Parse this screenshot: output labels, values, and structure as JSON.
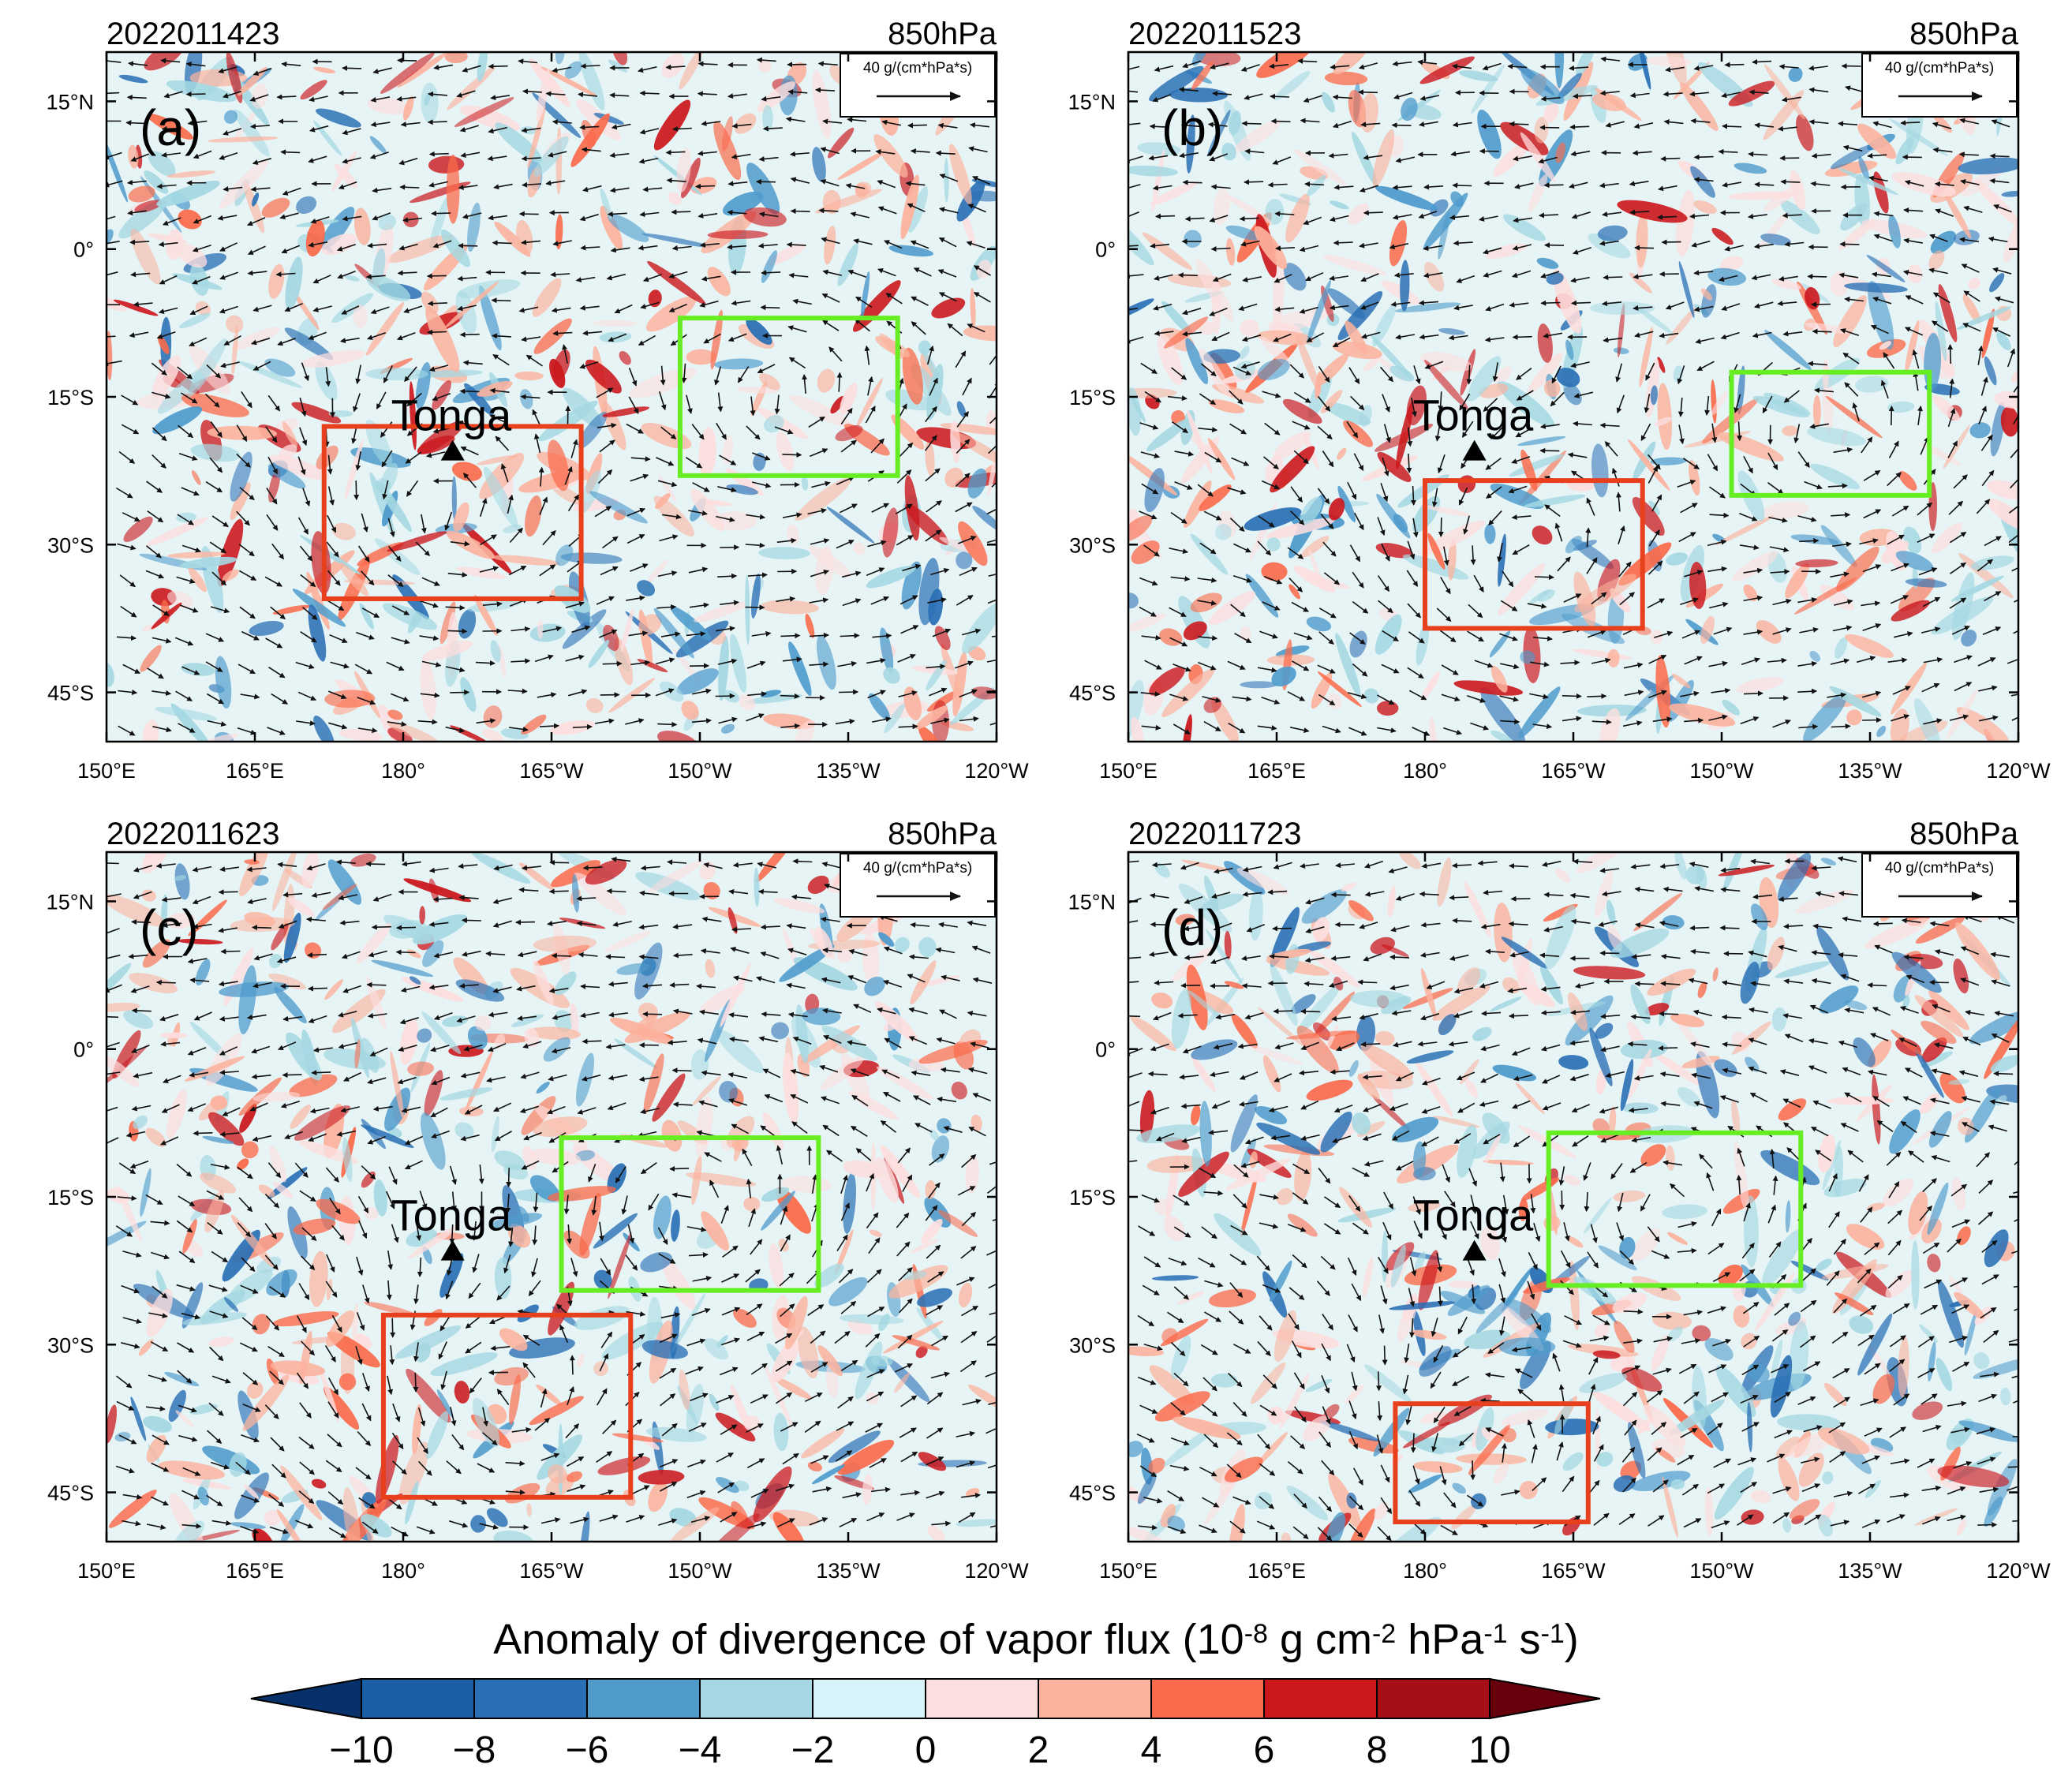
{
  "panels": [
    {
      "id": "a",
      "label": "(a)",
      "date": "2022011423",
      "level": "850hPa",
      "ref_vector_label": "40 g/(cm*hPa*s)",
      "place_label": "Tonga",
      "tonga_location": {
        "lon": 185.0,
        "lat": -20.5
      },
      "red_box": {
        "lon_min": 172.0,
        "lon_max": 198.0,
        "lat_min": -35.5,
        "lat_max": -18.0
      },
      "green_box": {
        "lon_min": 208.0,
        "lon_max": 230.0,
        "lat_min": -23.0,
        "lat_max": -7.0
      },
      "seed": 11
    },
    {
      "id": "b",
      "label": "(b)",
      "date": "2022011523",
      "level": "850hPa",
      "ref_vector_label": "40 g/(cm*hPa*s)",
      "place_label": "Tonga",
      "tonga_location": {
        "lon": 185.0,
        "lat": -20.5
      },
      "red_box": {
        "lon_min": 180.0,
        "lon_max": 202.0,
        "lat_min": -38.5,
        "lat_max": -23.5
      },
      "green_box": {
        "lon_min": 211.0,
        "lon_max": 231.0,
        "lat_min": -25.0,
        "lat_max": -12.5
      },
      "seed": 23
    },
    {
      "id": "c",
      "label": "(c)",
      "date": "2022011623",
      "level": "850hPa",
      "ref_vector_label": "40 g/(cm*hPa*s)",
      "place_label": "Tonga",
      "tonga_location": {
        "lon": 185.0,
        "lat": -20.5
      },
      "red_box": {
        "lon_min": 178.0,
        "lon_max": 203.0,
        "lat_min": -45.5,
        "lat_max": -27.0
      },
      "green_box": {
        "lon_min": 196.0,
        "lon_max": 222.0,
        "lat_min": -24.5,
        "lat_max": -9.0
      },
      "seed": 37
    },
    {
      "id": "d",
      "label": "(d)",
      "date": "2022011723",
      "level": "850hPa",
      "ref_vector_label": "40 g/(cm*hPa*s)",
      "place_label": "Tonga",
      "tonga_location": {
        "lon": 185.0,
        "lat": -20.5
      },
      "red_box": {
        "lon_min": 177.0,
        "lon_max": 196.5,
        "lat_min": -48.0,
        "lat_max": -36.0
      },
      "green_box": {
        "lon_min": 192.5,
        "lon_max": 218.0,
        "lat_min": -24.0,
        "lat_max": -8.5
      },
      "seed": 53
    }
  ],
  "map_extent": {
    "lon_min": 150,
    "lon_max": 240,
    "lat_min": -50,
    "lat_max": 20
  },
  "lon_ticks": [
    {
      "value": 150,
      "label": "150°E"
    },
    {
      "value": 165,
      "label": "165°E"
    },
    {
      "value": 180,
      "label": "180°"
    },
    {
      "value": 195,
      "label": "165°W"
    },
    {
      "value": 210,
      "label": "150°W"
    },
    {
      "value": 225,
      "label": "135°W"
    },
    {
      "value": 240,
      "label": "120°W"
    }
  ],
  "lat_ticks": [
    {
      "value": 15,
      "label": "15°N"
    },
    {
      "value": 0,
      "label": "0°"
    },
    {
      "value": -15,
      "label": "15°S"
    },
    {
      "value": -30,
      "label": "30°S"
    },
    {
      "value": -45,
      "label": "45°S"
    }
  ],
  "colorbar": {
    "title": "Anomaly of divergence of vapor flux (10",
    "title_parts": [
      {
        "text": "Anomaly of divergence of vapor flux (10",
        "sup": false
      },
      {
        "text": "-8",
        "sup": true
      },
      {
        "text": " g cm",
        "sup": false
      },
      {
        "text": "-2",
        "sup": true
      },
      {
        "text": " hPa",
        "sup": false
      },
      {
        "text": "-1",
        "sup": true
      },
      {
        "text": " s",
        "sup": false
      },
      {
        "text": "-1",
        "sup": true
      },
      {
        "text": ")",
        "sup": false
      }
    ],
    "tick_labels": [
      "−10",
      "−8",
      "−6",
      "−4",
      "−2",
      "0",
      "2",
      "4",
      "6",
      "8",
      "10"
    ],
    "colors": [
      "#08306b",
      "#1a5fa5",
      "#2a70b5",
      "#4f9bcc",
      "#a5d8e2",
      "#d8f3fa",
      "#fddede",
      "#fcb39e",
      "#fb6a4a",
      "#cb181d",
      "#a50f15",
      "#67000d"
    ]
  },
  "box_colors": {
    "red": "#e8401c",
    "green": "#66ee22"
  },
  "vector_color": "#111111"
}
